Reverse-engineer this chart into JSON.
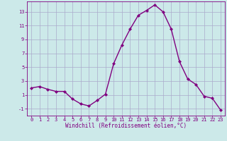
{
  "x": [
    0,
    1,
    2,
    3,
    4,
    5,
    6,
    7,
    8,
    9,
    10,
    11,
    12,
    13,
    14,
    15,
    16,
    17,
    18,
    19,
    20,
    21,
    22,
    23
  ],
  "y": [
    2,
    2.2,
    1.8,
    1.5,
    1.5,
    0.4,
    -0.3,
    -0.6,
    0.2,
    1.1,
    5.5,
    8.2,
    10.5,
    12.5,
    13.2,
    14.0,
    13.0,
    10.5,
    5.8,
    3.3,
    2.5,
    0.8,
    0.5,
    -1.2
  ],
  "line_color": "#800080",
  "marker": "D",
  "marker_size": 2.0,
  "bg_color": "#cce9e9",
  "grid_color": "#aaaacc",
  "xlabel": "Windchill (Refroidissement éolien,°C)",
  "xlabel_color": "#800080",
  "tick_color": "#800080",
  "yticks": [
    -1,
    1,
    3,
    5,
    7,
    9,
    11,
    13
  ],
  "xticks": [
    0,
    1,
    2,
    3,
    4,
    5,
    6,
    7,
    8,
    9,
    10,
    11,
    12,
    13,
    14,
    15,
    16,
    17,
    18,
    19,
    20,
    21,
    22,
    23
  ],
  "xlim": [
    -0.5,
    23.5
  ],
  "ylim": [
    -2.0,
    14.5
  ],
  "line_width": 1.0,
  "tick_fontsize": 5.0,
  "xlabel_fontsize": 5.5
}
